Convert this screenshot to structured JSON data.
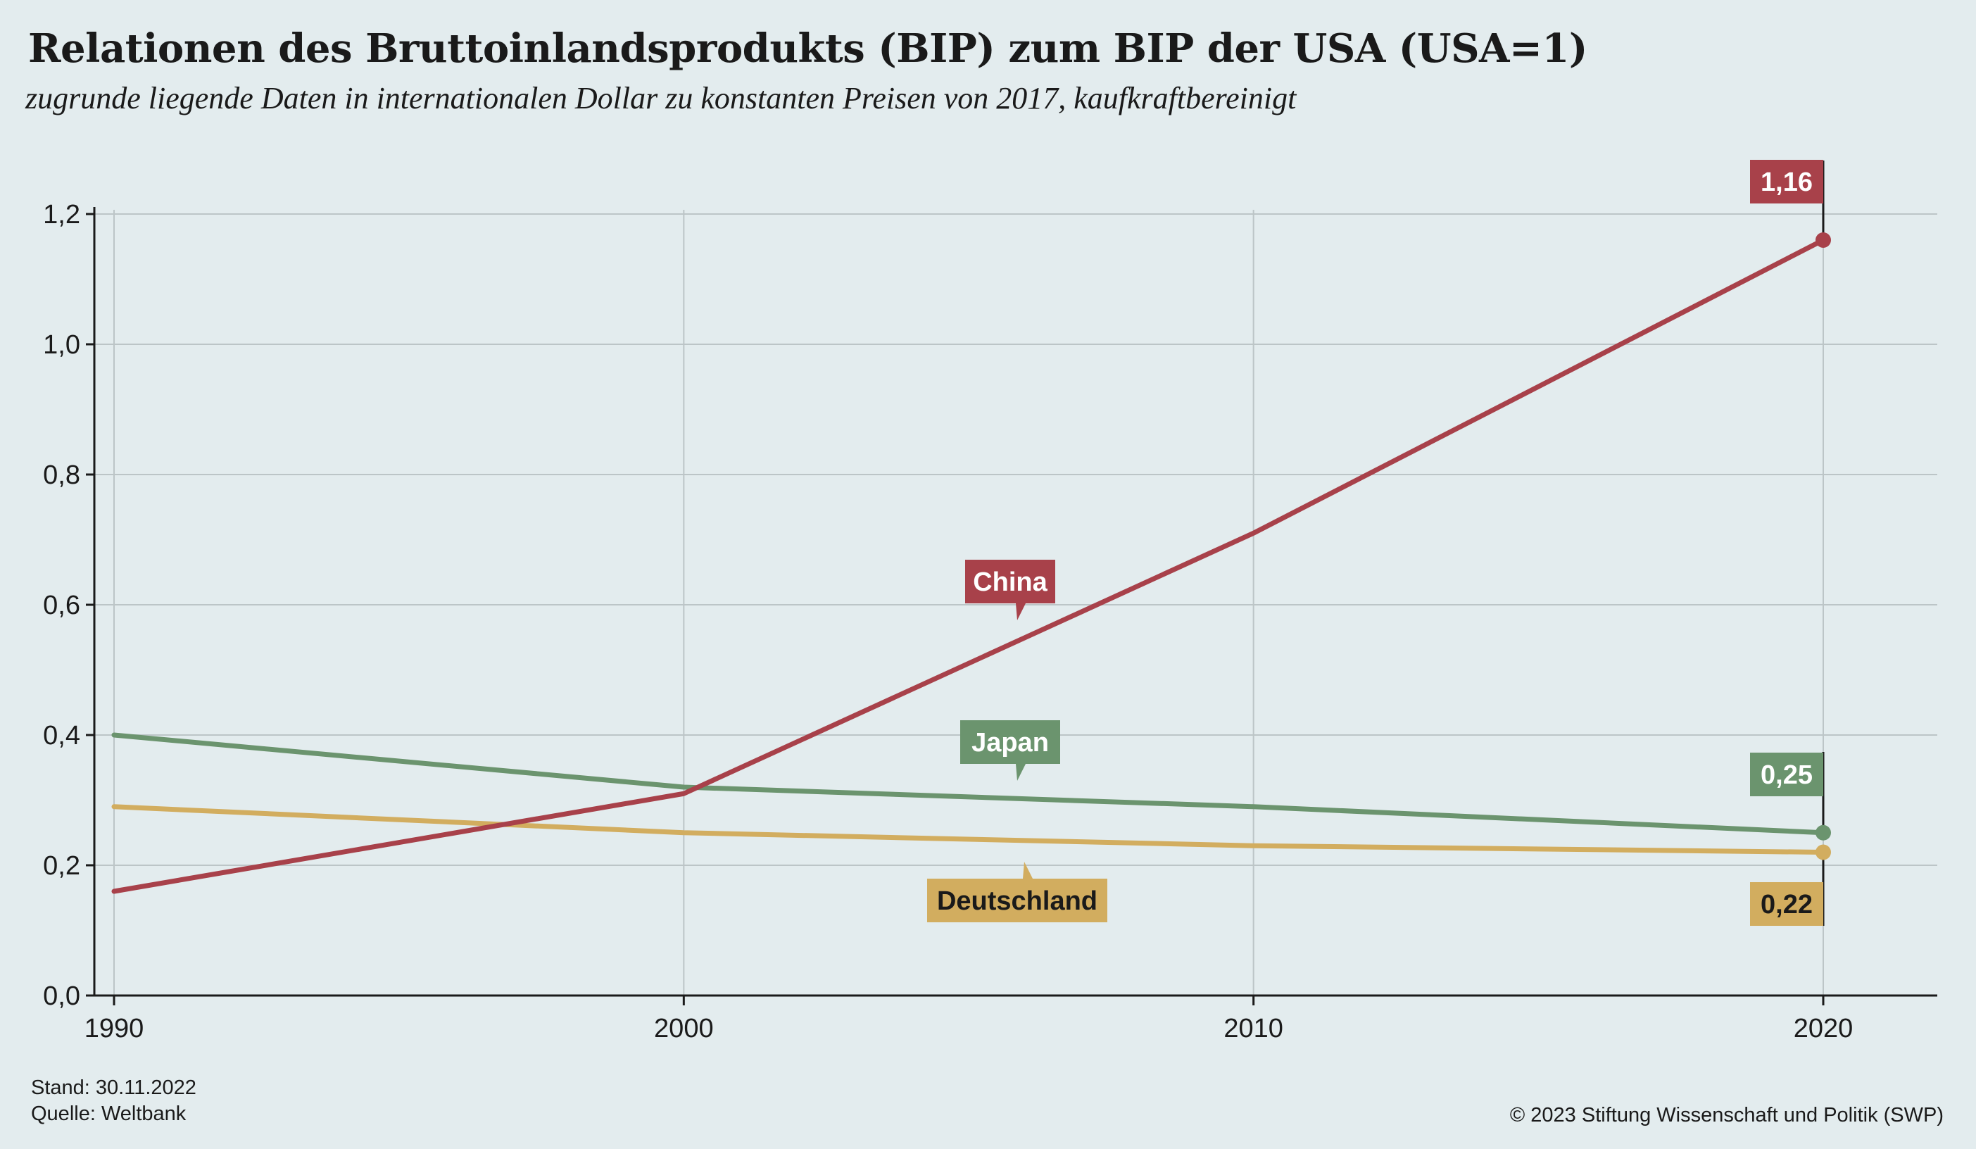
{
  "title": "Relationen des Bruttoinlandsprodukts (BIP) zum BIP der USA (USA=1)",
  "subtitle": "zugrunde liegende Daten in internationalen Dollar zu konstanten Preisen von 2017, kaufkraftbereinigt",
  "footer": {
    "stand": "Stand: 30.11.2022",
    "quelle": "Quelle: Weltbank",
    "copyright": "© 2023 Stiftung Wissenschaft und Politik (SWP)"
  },
  "colors": {
    "background": "#e3ecee",
    "China": "#a8414a",
    "Japan": "#6b946e",
    "Deutschland": "#d2ad5f",
    "grid": "#bcc5c7",
    "axis": "#1a1a1a"
  },
  "chart_data": {
    "type": "line",
    "title": "Relationen des Bruttoinlandsprodukts (BIP) zum BIP der USA (USA=1)",
    "subtitle": "zugrunde liegende Daten in internationalen Dollar zu konstanten Preisen von 2017, kaufkraftbereinigt",
    "xlabel": "",
    "ylabel": "",
    "x": [
      1990,
      2000,
      2010,
      2020
    ],
    "xlim": [
      1990,
      2022
    ],
    "ylim": [
      0,
      1.2
    ],
    "yticks": [
      0,
      0.2,
      0.4,
      0.6,
      0.8,
      1.0,
      1.2
    ],
    "ytick_labels": [
      "0,0",
      "0,2",
      "0,4",
      "0,6",
      "0,8",
      "1,0",
      "1,2"
    ],
    "xtick_labels": [
      "1990",
      "2000",
      "2010",
      "2020"
    ],
    "grid": true,
    "legend": "inline labels on lines",
    "series": [
      {
        "name": "China",
        "values": [
          0.16,
          0.31,
          0.71,
          1.16
        ],
        "end_label": "1,16"
      },
      {
        "name": "Japan",
        "values": [
          0.4,
          0.32,
          0.29,
          0.25
        ],
        "end_label": "0,25"
      },
      {
        "name": "Deutschland",
        "values": [
          0.29,
          0.25,
          0.23,
          0.22
        ],
        "end_label": "0,22"
      }
    ]
  }
}
